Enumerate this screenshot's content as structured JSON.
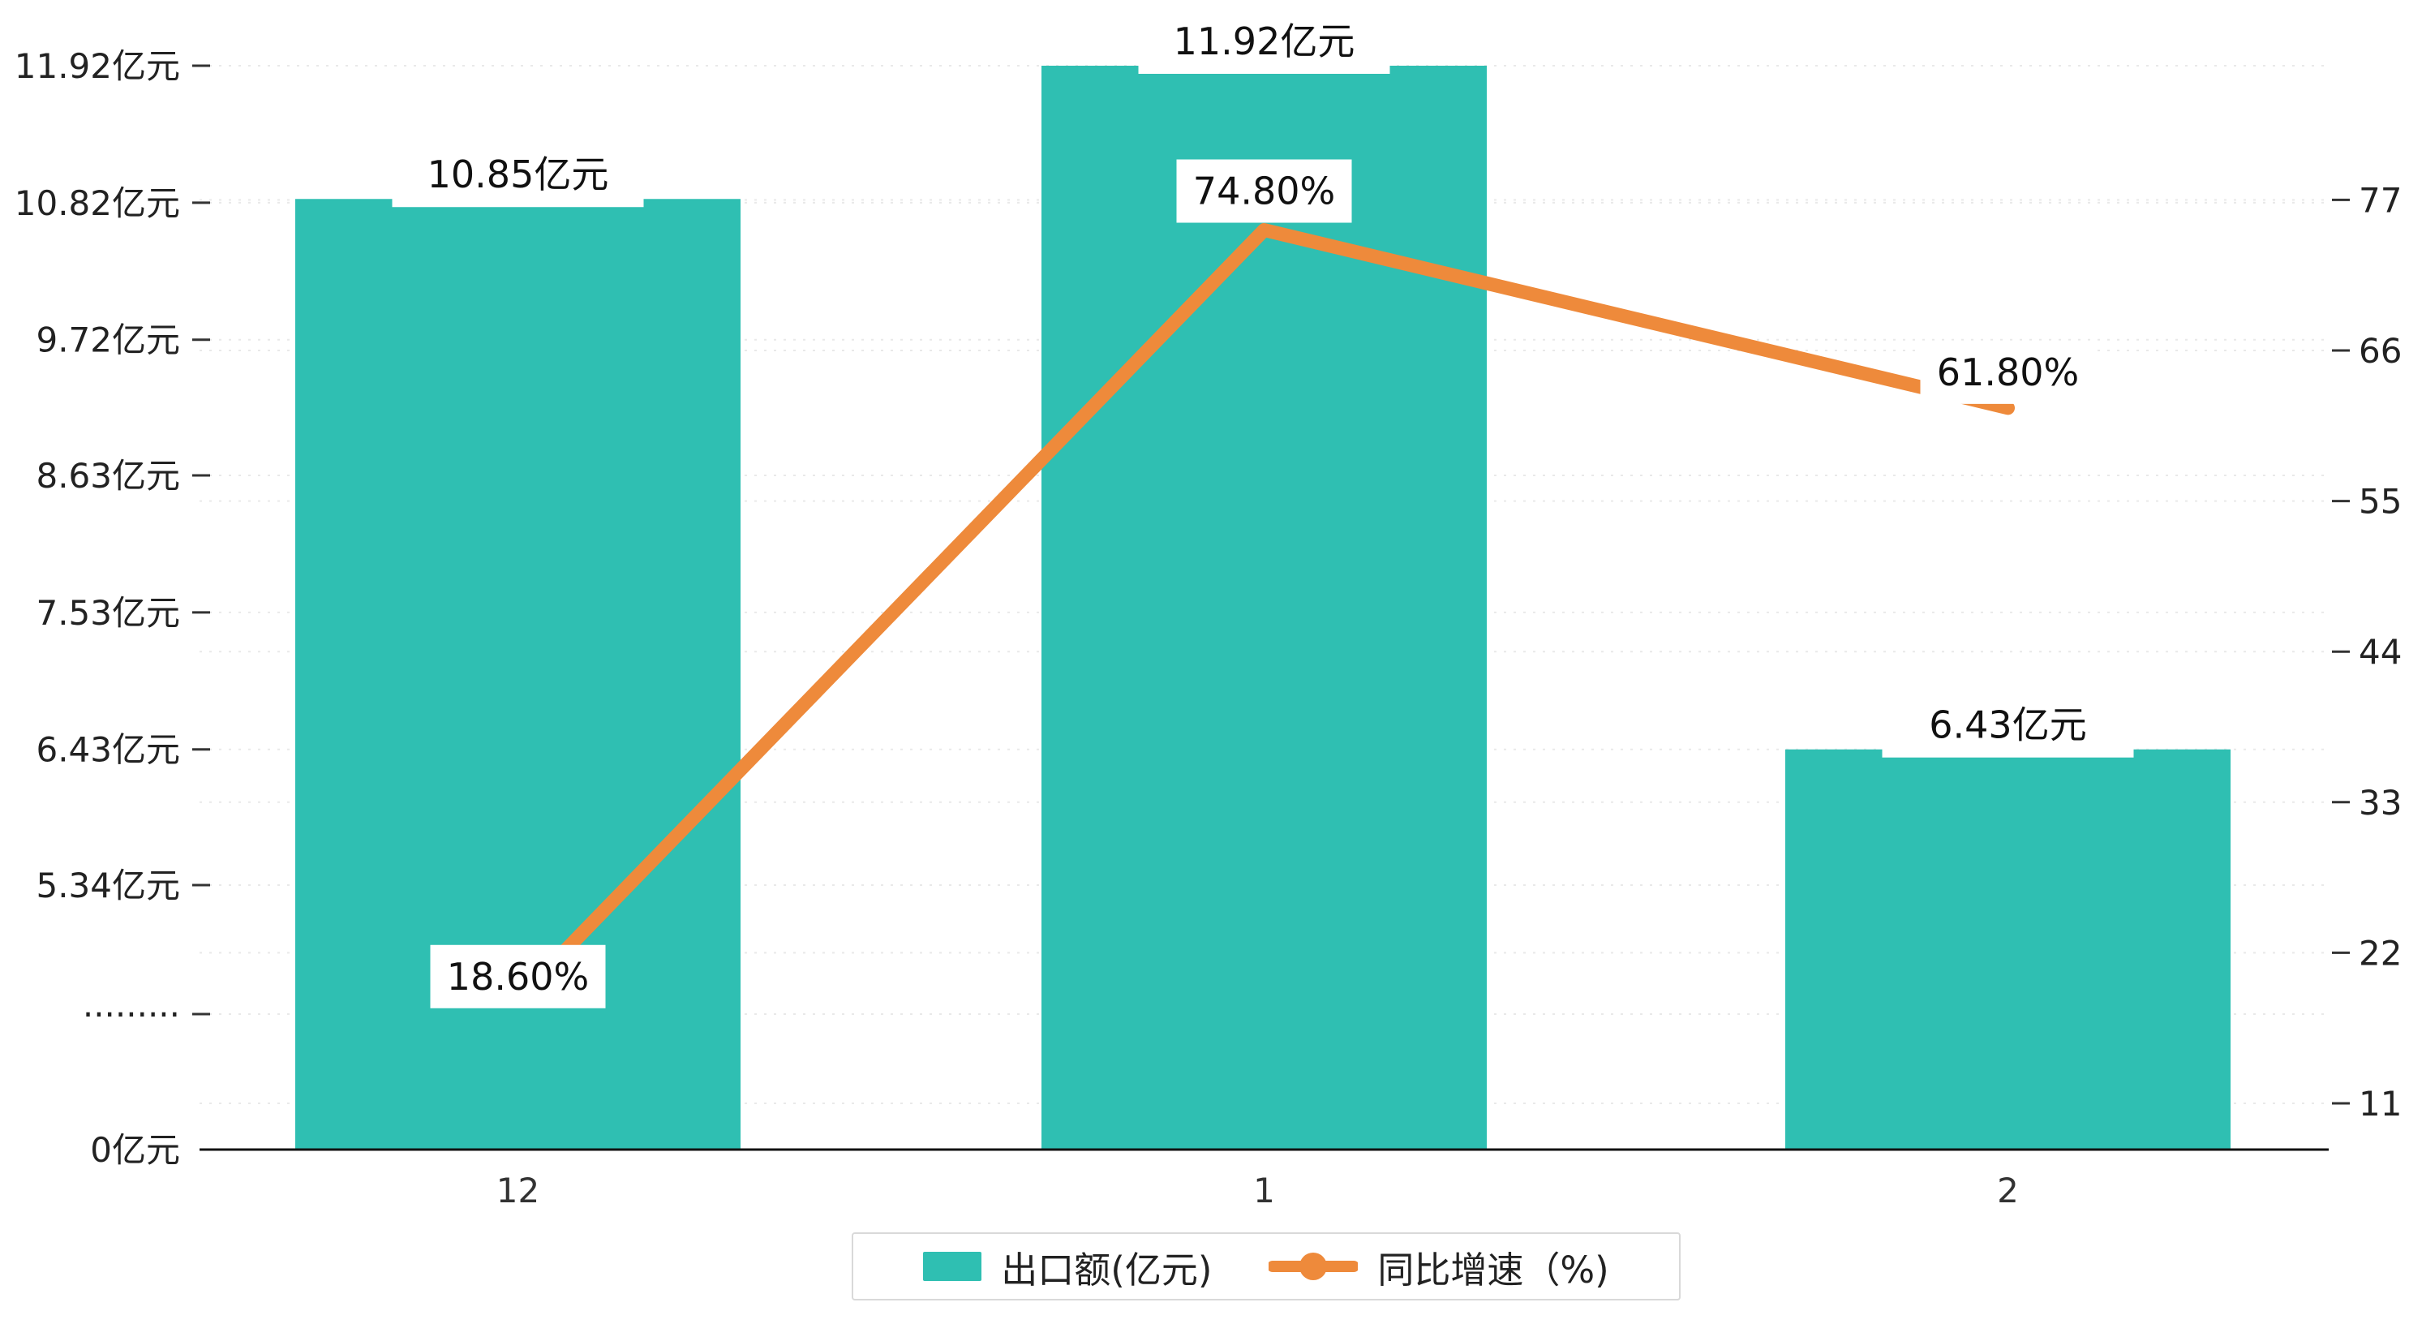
{
  "chart_data": {
    "type": "bar",
    "subtype": "bar-line-combo",
    "title": "",
    "categories": [
      "12",
      "1",
      "2"
    ],
    "series": [
      {
        "name": "出口额(亿元)",
        "type": "bar",
        "axis": "left",
        "values": [
          10.85,
          11.92,
          6.43
        ],
        "labels": [
          "10.85亿元",
          "11.92亿元",
          "6.43亿元"
        ],
        "color": "#2fbfb2"
      },
      {
        "name": "同比增速（%)",
        "type": "line",
        "axis": "right",
        "values": [
          18.6,
          74.8,
          61.8
        ],
        "labels": [
          "18.60%",
          "74.80%",
          "61.80%"
        ],
        "color": "#ee8a3b"
      }
    ],
    "left_axis": {
      "tick_labels": [
        "11.92亿元",
        "10.82亿元",
        "9.72亿元",
        "8.63亿元",
        "7.53亿元",
        "6.43亿元",
        "5.34亿元",
        "·········",
        "0亿元"
      ],
      "tick_values": [
        11.92,
        10.82,
        9.72,
        8.63,
        7.53,
        6.43,
        5.34,
        null,
        0
      ],
      "axis_break": true
    },
    "right_axis": {
      "tick_labels": [
        "77",
        "66",
        "55",
        "44",
        "33",
        "22",
        "11"
      ],
      "tick_values": [
        77,
        66,
        55,
        44,
        33,
        22,
        11
      ],
      "min": 11,
      "max": 77,
      "step": 11
    },
    "legend": {
      "position": "bottom",
      "items": [
        {
          "label": "出口额(亿元)",
          "marker": "bar-swatch",
          "color": "#2fbfb2"
        },
        {
          "label": "同比增速（%)",
          "marker": "line-dot",
          "color": "#ee8a3b"
        }
      ]
    },
    "grid": "dashed-horizontal",
    "colors": {
      "bar": "#2fbfb2",
      "line": "#ee8a3b",
      "axis_text": "#222222",
      "gridline": "#e9e9e9",
      "axis_line": "#111111",
      "label_text": "#111111"
    }
  }
}
